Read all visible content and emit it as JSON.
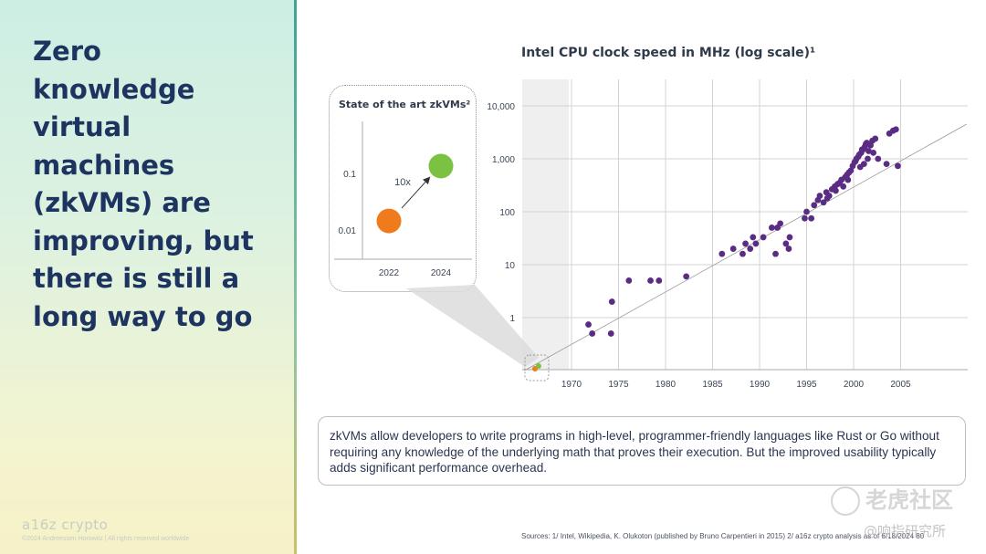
{
  "slide": {
    "headline": "Zero knowledge virtual machines (zkVMs) are improving, but there is still a long way to go",
    "brand": "a16z crypto",
    "copyright": "©2024 Andreessen Horowitz | All rights reserved worldwide",
    "callout": "zkVMs allow developers to write programs in high-level, programmer-friendly languages like Rust or Go without requiring any knowledge of the underlying math that proves their execution. But the improved usability typically adds significant performance overhead.",
    "sources": "Sources: 1/ Intel, Wikipedia, K. Olukoton (published by Bruno Carpentieri in 2015) 2/ a16z crypto analysis as of 6/18/2024",
    "page_number": "80",
    "watermark_main": "老虎社区",
    "watermark_sub": "@响指研究所",
    "colors": {
      "purple": "#5b2c83",
      "orange": "#f07b1c",
      "green": "#7cc242",
      "headline": "#1e3460"
    }
  },
  "chart_data": [
    {
      "type": "scatter",
      "title": "Intel CPU clock speed in MHz (log scale)¹",
      "xlabel": "",
      "ylabel": "",
      "xlim": [
        1963,
        2011
      ],
      "ylim": [
        0.1,
        20000
      ],
      "log_y": true,
      "grid": true,
      "x_ticks": [
        "1970",
        "1975",
        "1980",
        "1985",
        "1990",
        "1995",
        "2000",
        "2005"
      ],
      "y_ticks": [
        "1",
        "10",
        "100",
        "1,000",
        "10,000"
      ],
      "trendline": [
        [
          1965,
          0.1
        ],
        [
          2012,
          4500
        ]
      ],
      "series": [
        {
          "x": [
            1971.8,
            1972.2,
            1974.2,
            1974.3,
            1976.1,
            1978.4,
            1979.3,
            1982.2,
            1986.0,
            1987.2,
            1988.2,
            1988.5,
            1989.0,
            1989.3,
            1989.6,
            1990.4,
            1991.3,
            1991.7,
            1991.9,
            1992.2,
            1992.8,
            1993.1,
            1993.2,
            1994.8,
            1995.0,
            1995.5,
            1995.8,
            1996.2,
            1996.4,
            1996.8,
            1997.1,
            1997.4,
            1997.7,
            1998.0,
            1998.3,
            1998.5,
            1998.7,
            1998.9,
            1999.1,
            1999.3,
            1999.5,
            1999.7,
            1999.9,
            2000.1,
            2000.3,
            2000.5,
            2000.6,
            2000.8,
            2001.0,
            2001.2,
            2001.4,
            2001.6,
            2001.8,
            2002.0,
            2002.3,
            2002.6,
            2003.5,
            2003.8,
            2004.2,
            2004.5,
            2004.7,
            2000.2,
            2000.7,
            2001.1,
            2001.5,
            2002.1,
            1999.4,
            1998.1,
            1997.2,
            2000.9,
            2001.3
          ],
          "y": [
            0.74,
            0.5,
            0.5,
            2,
            5,
            5,
            5,
            6,
            16,
            20,
            16,
            25,
            20,
            33,
            25,
            33,
            50,
            16,
            50,
            60,
            25,
            20,
            33,
            75,
            100,
            75,
            133,
            166,
            200,
            150,
            233,
            200,
            266,
            300,
            333,
            350,
            400,
            300,
            450,
            500,
            550,
            600,
            733,
            866,
            1000,
            1100,
            1200,
            1300,
            1500,
            1700,
            2000,
            1400,
            1800,
            2200,
            2400,
            1000,
            800,
            3000,
            3400,
            3600,
            733,
            900,
            700,
            800,
            1000,
            1300,
            400,
            250,
            180,
            1500,
            1900
          ]
        }
      ]
    },
    {
      "type": "scatter",
      "title": "State of the art zkVMs²",
      "x_ticks": [
        "2022",
        "2024"
      ],
      "y_ticks": [
        "0.01",
        "0.1"
      ],
      "annotation": "10x",
      "points": [
        {
          "x": "2022",
          "y": 0.015,
          "color": "#f07b1c"
        },
        {
          "x": "2024",
          "y": 0.14,
          "color": "#7cc242"
        }
      ]
    }
  ]
}
